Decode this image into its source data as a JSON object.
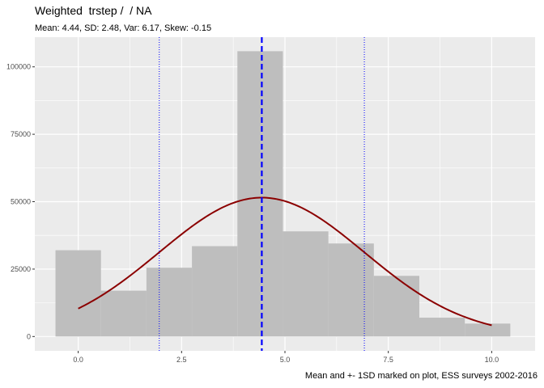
{
  "title": "Weighted  trstep /  / NA",
  "subtitle": "Mean: 4.44, SD: 2.48, Var: 6.17, Skew: -0.15",
  "caption": "Mean and +- 1SD marked on plot, ESS surveys 2002-2016",
  "chart_data": {
    "type": "bar",
    "title": "Weighted  trstep /  / NA",
    "subtitle": "Mean: 4.44, SD: 2.48, Var: 6.17, Skew: -0.15",
    "xlabel": "",
    "ylabel": "",
    "xlim": [
      -1.05,
      11.05
    ],
    "ylim": [
      -5300,
      111000
    ],
    "x_ticks": [
      0.0,
      2.5,
      5.0,
      7.5,
      10.0
    ],
    "x_tick_labels": [
      "0.0",
      "2.5",
      "5.0",
      "7.5",
      "10.0"
    ],
    "y_ticks": [
      0,
      25000,
      50000,
      75000,
      100000
    ],
    "y_tick_labels": [
      "0",
      "25000",
      "50000",
      "75000",
      "100000"
    ],
    "bin_width": 1.1,
    "bins": [
      {
        "x0": -0.55,
        "x1": 0.55,
        "value": 32000
      },
      {
        "x0": 0.55,
        "x1": 1.65,
        "value": 17000
      },
      {
        "x0": 1.65,
        "x1": 2.75,
        "value": 25500
      },
      {
        "x0": 2.75,
        "x1": 3.85,
        "value": 33500
      },
      {
        "x0": 3.85,
        "x1": 4.95,
        "value": 105800
      },
      {
        "x0": 4.95,
        "x1": 6.05,
        "value": 39000
      },
      {
        "x0": 6.05,
        "x1": 7.15,
        "value": 34500
      },
      {
        "x0": 7.15,
        "x1": 8.25,
        "value": 22500
      },
      {
        "x0": 8.25,
        "x1": 9.35,
        "value": 7000
      },
      {
        "x0": 9.35,
        "x1": 10.45,
        "value": 4800
      }
    ],
    "density_curve": {
      "mean": 4.44,
      "sd": 2.48,
      "x_start": 0,
      "x_end": 10,
      "peak": 51500
    },
    "mean_line": 4.44,
    "sd_lines": [
      1.96,
      6.92
    ],
    "grid": true,
    "legend": "none",
    "colors": {
      "panel_background": "#ebebeb",
      "grid": "#ffffff",
      "bars": "#bebebe",
      "curve": "#8b0000",
      "mean_line": "#0000ff",
      "sd_lines": "#0000ff"
    }
  }
}
